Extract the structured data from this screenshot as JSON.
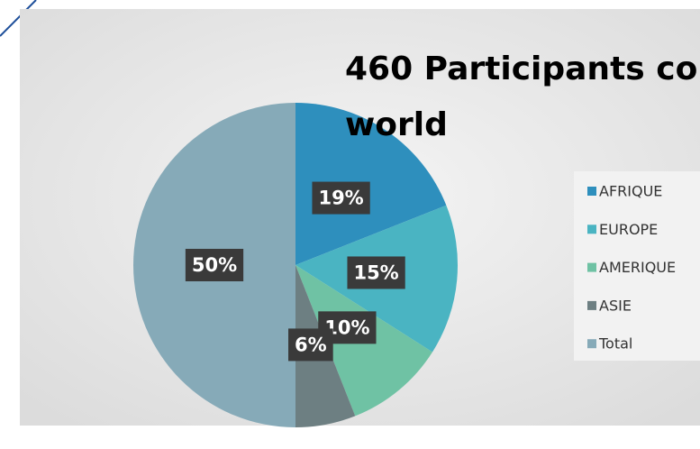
{
  "chart_data": {
    "type": "pie",
    "title": [
      "460 Participants co",
      "world"
    ],
    "categories": [
      "AFRIQUE",
      "EUROPE",
      "AMERIQUE",
      "ASIE",
      "Total"
    ],
    "values": [
      19,
      15,
      10,
      6,
      50
    ],
    "value_labels": [
      "19%",
      "15%",
      "10%",
      "6%",
      "50%"
    ],
    "colors": [
      "#2e8fbd",
      "#4ab4c2",
      "#6fc2a4",
      "#6d7f82",
      "#86aab8"
    ],
    "legend": "right"
  }
}
